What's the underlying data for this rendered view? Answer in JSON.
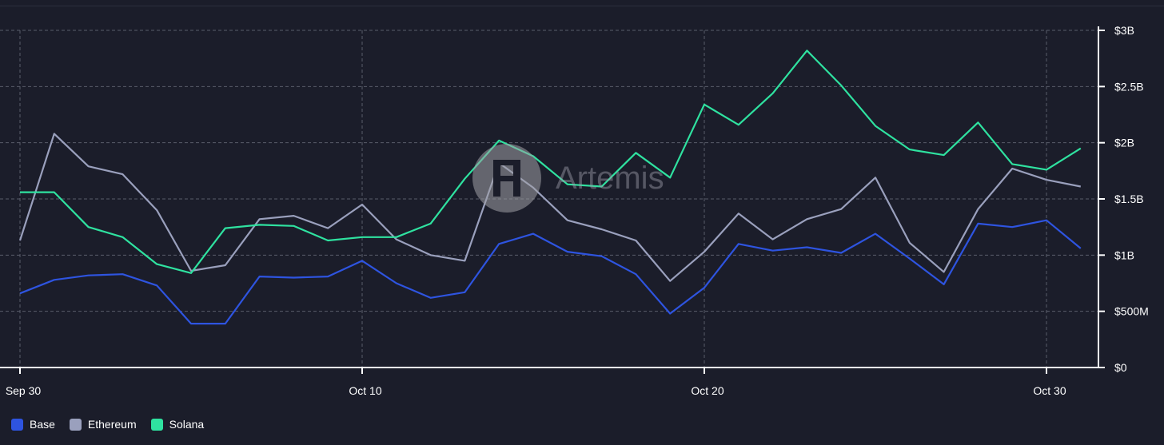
{
  "watermark": {
    "text": "Artemis",
    "icon": "artemis-logo-icon"
  },
  "colors": {
    "background": "#1b1d2a",
    "grid": "#5a5d6b",
    "axis": "#ffffff"
  },
  "chart_data": {
    "type": "line",
    "title": "",
    "xlabel": "",
    "ylabel": "",
    "x": [
      "2024-09-30",
      "2024-10-01",
      "2024-10-02",
      "2024-10-03",
      "2024-10-04",
      "2024-10-05",
      "2024-10-06",
      "2024-10-07",
      "2024-10-08",
      "2024-10-09",
      "2024-10-10",
      "2024-10-11",
      "2024-10-12",
      "2024-10-13",
      "2024-10-14",
      "2024-10-15",
      "2024-10-16",
      "2024-10-17",
      "2024-10-18",
      "2024-10-19",
      "2024-10-20",
      "2024-10-21",
      "2024-10-22",
      "2024-10-23",
      "2024-10-24",
      "2024-10-25",
      "2024-10-26",
      "2024-10-27",
      "2024-10-28",
      "2024-10-29",
      "2024-10-30",
      "2024-10-31"
    ],
    "x_tick_labels": [
      "Sep 30",
      "Oct 10",
      "Oct 20",
      "Oct 30"
    ],
    "x_tick_index": [
      0,
      10,
      20,
      30
    ],
    "y_ticks": [
      0,
      500000000,
      1000000000,
      1500000000,
      2000000000,
      2500000000,
      3000000000
    ],
    "y_tick_labels": [
      "$0",
      "$500M",
      "$1B",
      "$1.5B",
      "$2B",
      "$2.5B",
      "$3B"
    ],
    "ylim": [
      0,
      3000000000
    ],
    "grid": true,
    "legend_position": "bottom-left",
    "series": [
      {
        "name": "Base",
        "color": "#2e54e0",
        "values": [
          660000000,
          780000000,
          820000000,
          830000000,
          730000000,
          390000000,
          390000000,
          810000000,
          800000000,
          810000000,
          950000000,
          750000000,
          620000000,
          670000000,
          1100000000,
          1190000000,
          1030000000,
          990000000,
          830000000,
          480000000,
          710000000,
          1100000000,
          1040000000,
          1070000000,
          1020000000,
          1190000000,
          970000000,
          740000000,
          1280000000,
          1250000000,
          1310000000,
          1060000000
        ]
      },
      {
        "name": "Ethereum",
        "color": "#9aa0bd",
        "values": [
          1130000000,
          2080000000,
          1790000000,
          1720000000,
          1400000000,
          860000000,
          910000000,
          1320000000,
          1350000000,
          1240000000,
          1450000000,
          1140000000,
          1000000000,
          950000000,
          1820000000,
          1600000000,
          1310000000,
          1230000000,
          1130000000,
          770000000,
          1030000000,
          1370000000,
          1140000000,
          1320000000,
          1410000000,
          1690000000,
          1110000000,
          850000000,
          1410000000,
          1770000000,
          1670000000,
          1610000000
        ]
      },
      {
        "name": "Solana",
        "color": "#2fe2a0",
        "values": [
          1560000000,
          1560000000,
          1250000000,
          1160000000,
          920000000,
          840000000,
          1240000000,
          1270000000,
          1260000000,
          1130000000,
          1160000000,
          1160000000,
          1280000000,
          1680000000,
          2020000000,
          1880000000,
          1630000000,
          1610000000,
          1910000000,
          1690000000,
          2340000000,
          2160000000,
          2440000000,
          2820000000,
          2510000000,
          2150000000,
          1940000000,
          1890000000,
          2180000000,
          1810000000,
          1760000000,
          1950000000
        ]
      }
    ]
  }
}
